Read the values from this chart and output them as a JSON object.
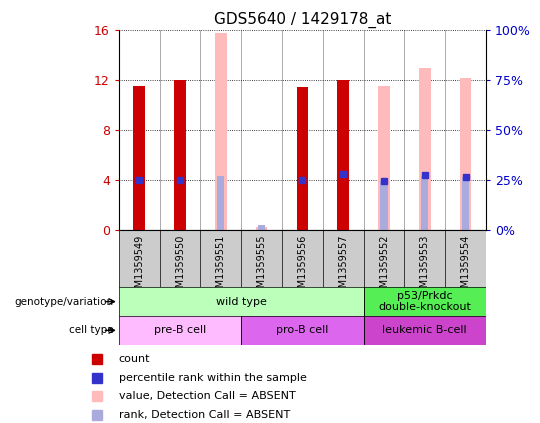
{
  "title": "GDS5640 / 1429178_at",
  "samples": [
    "GSM1359549",
    "GSM1359550",
    "GSM1359551",
    "GSM1359555",
    "GSM1359556",
    "GSM1359557",
    "GSM1359552",
    "GSM1359553",
    "GSM1359554"
  ],
  "count_values": [
    11.5,
    12.0,
    null,
    null,
    11.4,
    12.0,
    null,
    null,
    null
  ],
  "percentile_values": [
    4.0,
    4.0,
    null,
    null,
    4.0,
    4.5,
    3.9,
    4.4,
    4.2
  ],
  "absent_value_values": [
    null,
    null,
    15.7,
    0.28,
    null,
    null,
    11.5,
    12.9,
    12.1
  ],
  "absent_rank_values": [
    null,
    null,
    4.35,
    0.42,
    null,
    null,
    3.9,
    4.35,
    4.2
  ],
  "ylim_left": [
    0,
    16
  ],
  "ylim_right": [
    0,
    100
  ],
  "yticks_left": [
    0,
    4,
    8,
    12,
    16
  ],
  "yticks_right": [
    0,
    25,
    50,
    75,
    100
  ],
  "count_color": "#cc0000",
  "percentile_color": "#3333cc",
  "absent_value_color": "#ffbbbb",
  "absent_rank_color": "#aaaadd",
  "count_bar_width": 0.28,
  "absent_value_bar_width": 0.28,
  "absent_rank_bar_width": 0.18,
  "genotype_groups": [
    {
      "label": "wild type",
      "start": 0,
      "end": 6,
      "color": "#bbffbb"
    },
    {
      "label": "p53/Prkdc\ndouble-knockout",
      "start": 6,
      "end": 9,
      "color": "#55ee55"
    }
  ],
  "cell_type_groups": [
    {
      "label": "pre-B cell",
      "start": 0,
      "end": 3,
      "color": "#ffbbff"
    },
    {
      "label": "pro-B cell",
      "start": 3,
      "end": 6,
      "color": "#dd66ee"
    },
    {
      "label": "leukemic B-cell",
      "start": 6,
      "end": 9,
      "color": "#cc44cc"
    }
  ],
  "grid_color": "#000000",
  "left_tick_color": "#cc0000",
  "right_tick_color": "#0000cc",
  "tick_label_bg": "#cccccc",
  "separator_color": "#888888"
}
